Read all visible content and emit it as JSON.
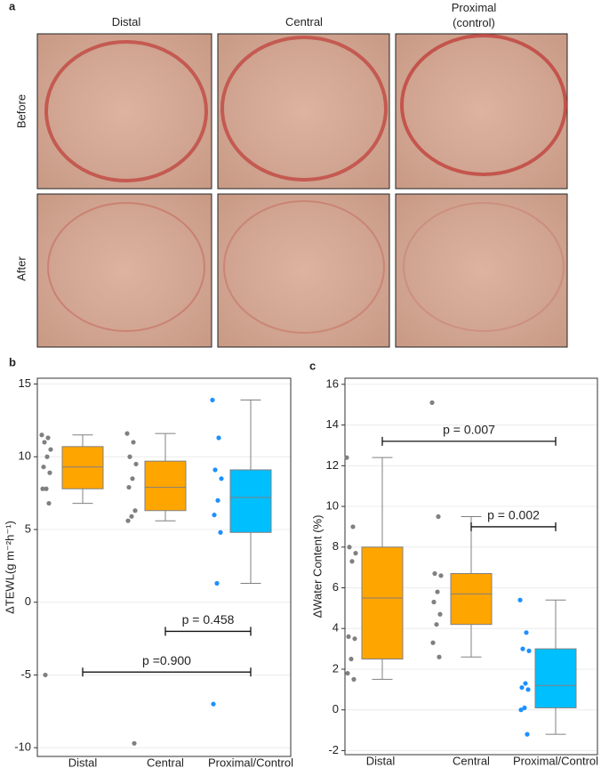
{
  "panel_a": {
    "label": "a",
    "columns": [
      "Distal",
      "Central",
      "Proximal (control)"
    ],
    "rows": [
      "Before",
      "After"
    ]
  },
  "chart_data": [
    {
      "type": "box",
      "panel_label": "b",
      "y_label": "ΔTEWL(g m⁻²h⁻¹)",
      "categories": [
        "Distal",
        "Central",
        "Proximal/Control"
      ],
      "ylim": [
        -10.6,
        15.4
      ],
      "yticks": [
        -10,
        -5,
        0,
        5,
        10,
        15
      ],
      "grid": true,
      "boxes": [
        {
          "min": 6.8,
          "q1": 7.8,
          "median": 9.3,
          "q3": 10.7,
          "max": 11.5,
          "color": "#ffa500",
          "point_color": "#808080",
          "points": [
            11.5,
            11.3,
            11.0,
            10.5,
            10.0,
            9.3,
            8.9,
            7.8,
            7.8,
            6.8,
            -5.0
          ]
        },
        {
          "min": 5.6,
          "q1": 6.3,
          "median": 7.9,
          "q3": 9.7,
          "max": 11.6,
          "color": "#ffa500",
          "point_color": "#808080",
          "points": [
            11.6,
            11.0,
            10.0,
            9.5,
            8.5,
            7.9,
            6.3,
            5.9,
            5.6,
            -9.7
          ]
        },
        {
          "min": 1.3,
          "q1": 4.8,
          "median": 7.2,
          "q3": 9.1,
          "max": 13.9,
          "color": "#00bfff",
          "point_color": "#1e90ff",
          "points": [
            13.9,
            11.3,
            9.1,
            8.5,
            7.0,
            6.0,
            4.8,
            1.3,
            -7.0
          ]
        }
      ],
      "annotations": [
        {
          "text": "p = 0.458",
          "from": 1,
          "to": 2,
          "y": -2.0
        },
        {
          "text": "p =0.900",
          "from": 0,
          "to": 2,
          "y": -4.8
        }
      ]
    },
    {
      "type": "box",
      "panel_label": "c",
      "y_label": "ΔWater Content (%)",
      "categories": [
        "Distal",
        "Central",
        "Proximal/Control"
      ],
      "ylim": [
        -2.2,
        16.3
      ],
      "yticks": [
        -2,
        0,
        2,
        4,
        6,
        8,
        10,
        12,
        14,
        16
      ],
      "grid": true,
      "boxes": [
        {
          "min": 1.5,
          "q1": 2.5,
          "median": 5.5,
          "q3": 8.0,
          "max": 12.4,
          "color": "#ffa500",
          "point_color": "#808080",
          "points": [
            12.4,
            9.0,
            8.0,
            7.7,
            7.3,
            3.6,
            3.5,
            2.5,
            1.8,
            1.5
          ]
        },
        {
          "min": 2.6,
          "q1": 4.2,
          "median": 5.7,
          "q3": 6.7,
          "max": 9.5,
          "color": "#ffa500",
          "point_color": "#808080",
          "points": [
            15.1,
            9.5,
            6.7,
            6.6,
            5.8,
            5.3,
            4.7,
            4.2,
            3.3,
            2.6
          ]
        },
        {
          "min": -1.2,
          "q1": 0.1,
          "median": 1.2,
          "q3": 3.0,
          "max": 5.4,
          "color": "#00bfff",
          "point_color": "#1e90ff",
          "points": [
            5.4,
            3.8,
            3.0,
            2.9,
            1.3,
            1.1,
            1.0,
            0.1,
            0.0,
            -1.2
          ]
        }
      ],
      "annotations": [
        {
          "text": "p = 0.007",
          "from": 0,
          "to": 2,
          "y": 13.2
        },
        {
          "text": "p = 0.002",
          "from": 1,
          "to": 2,
          "y": 9.0
        }
      ]
    }
  ]
}
